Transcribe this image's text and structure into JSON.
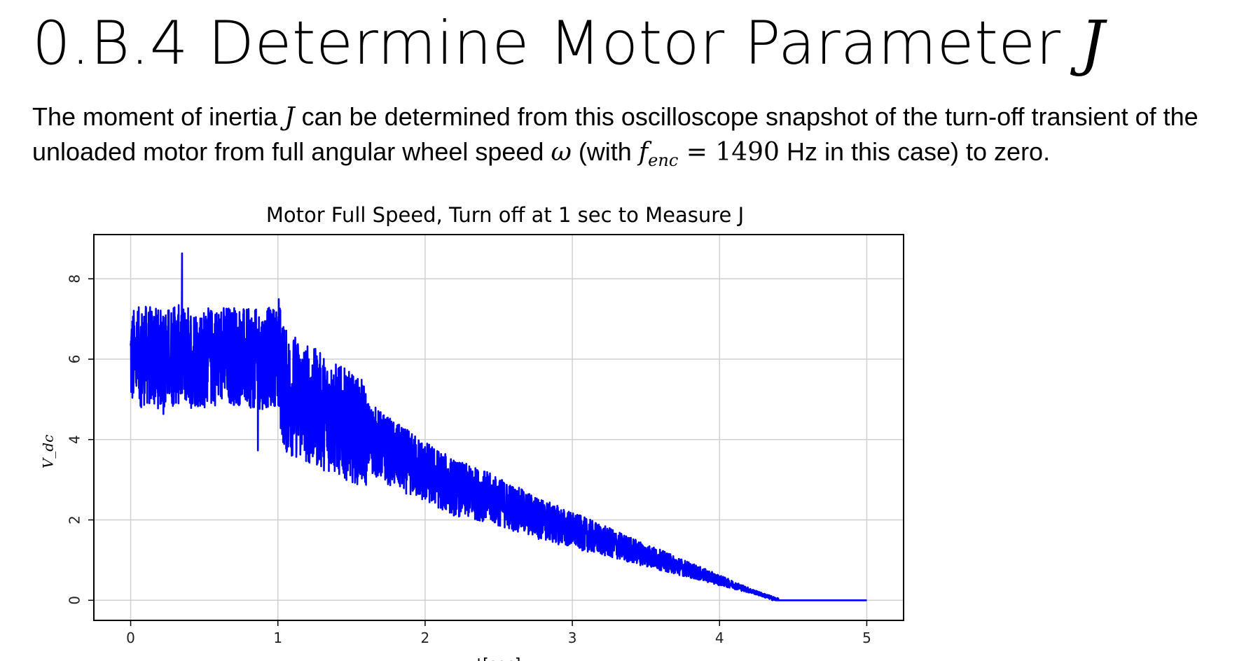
{
  "slide": {
    "title_prefix": "0.B.4 Determine Motor Parameter ",
    "title_symbol": "J",
    "desc_part1": "The moment of inertia ",
    "desc_J": "J",
    "desc_part2": " can be determined from this oscilloscope snapshot of the turn-off transient of the unloaded motor from full angular wheel speed ",
    "desc_omega": "ω",
    "desc_part3": " (with ",
    "desc_f": "f",
    "desc_f_sub": "enc",
    "desc_eq": " = 1490",
    "desc_part4": " Hz in this case) to zero."
  },
  "chart_data": {
    "type": "line",
    "title": "Motor Full Speed, Turn off at 1 sec to Measure J",
    "xlabel": "t[sec]",
    "ylabel": "V_dc",
    "xlim": [
      -0.25,
      5.25
    ],
    "ylim": [
      -0.5,
      9.1
    ],
    "xticks": [
      "0",
      "1",
      "2",
      "3",
      "4",
      "5"
    ],
    "yticks": [
      "0",
      "2",
      "4",
      "6",
      "8"
    ],
    "grid": true,
    "series": [
      {
        "color": "#0000ff",
        "x": [
          0,
          0.1,
          0.2,
          0.3,
          0.4,
          0.5,
          0.6,
          0.7,
          0.8,
          0.9,
          1.0,
          1.05,
          1.2,
          1.4,
          1.6,
          1.8,
          2.0,
          2.2,
          2.4,
          2.6,
          2.8,
          3.0,
          3.2,
          3.4,
          3.6,
          3.8,
          4.0,
          4.2,
          4.4,
          4.6,
          4.8,
          5.0
        ],
        "y": [
          6.0,
          6.1,
          6.0,
          6.1,
          6.1,
          6.0,
          6.1,
          6.1,
          6.0,
          6.0,
          6.1,
          5.2,
          4.9,
          4.5,
          4.1,
          3.6,
          3.2,
          2.8,
          2.6,
          2.3,
          2.0,
          1.75,
          1.5,
          1.25,
          1.0,
          0.75,
          0.5,
          0.25,
          0.0,
          0.0,
          0.0,
          0.0
        ]
      }
    ]
  }
}
